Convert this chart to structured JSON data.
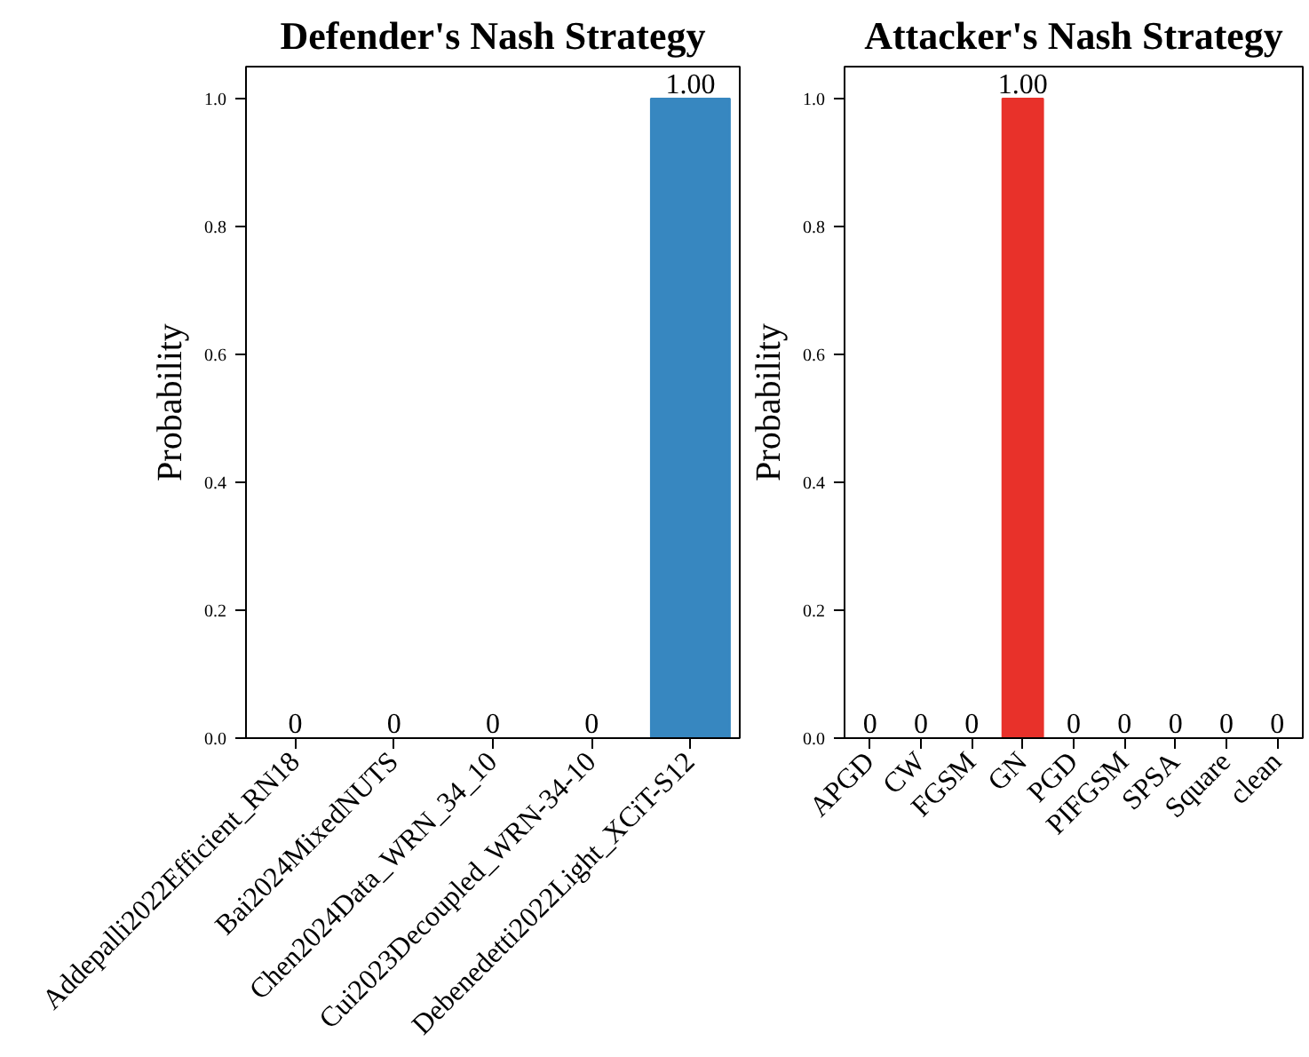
{
  "chart_data": [
    {
      "type": "bar",
      "title": "Defender's Nash Strategy",
      "ylabel": "Probability",
      "categories": [
        "Addepalli2022Efficient_RN18",
        "Bai2024MixedNUTS",
        "Chen2024Data_WRN_34_10",
        "Cui2023Decoupled_WRN-34-10",
        "Debenedetti2022Light_XCiT-S12"
      ],
      "values": [
        0,
        0,
        0,
        0,
        1.0
      ],
      "value_labels": [
        "0",
        "0",
        "0",
        "0",
        "1.00"
      ],
      "color": "#3787c0",
      "ylim": [
        0,
        1.05
      ],
      "yticks": [
        {
          "value": 0,
          "label": "0.0"
        },
        {
          "value": 0.2,
          "label": "0.2"
        },
        {
          "value": 0.4,
          "label": "0.4"
        },
        {
          "value": 0.6,
          "label": "0.6"
        },
        {
          "value": 0.8,
          "label": "0.8"
        },
        {
          "value": 1.0,
          "label": "1.0"
        }
      ]
    },
    {
      "type": "bar",
      "title": "Attacker's Nash Strategy",
      "ylabel": "Probability",
      "categories": [
        "APGD",
        "CW",
        "FGSM",
        "GN",
        "PGD",
        "PIFGSM",
        "SPSA",
        "Square",
        "clean"
      ],
      "values": [
        0,
        0,
        0,
        1.0,
        0,
        0,
        0,
        0,
        0
      ],
      "value_labels": [
        "0",
        "0",
        "0",
        "1.00",
        "0",
        "0",
        "0",
        "0",
        "0"
      ],
      "color": "#e8312a",
      "ylim": [
        0,
        1.05
      ],
      "yticks": [
        {
          "value": 0,
          "label": "0.0"
        },
        {
          "value": 0.2,
          "label": "0.2"
        },
        {
          "value": 0.4,
          "label": "0.4"
        },
        {
          "value": 0.6,
          "label": "0.6"
        },
        {
          "value": 0.8,
          "label": "0.8"
        },
        {
          "value": 1.0,
          "label": "1.0"
        }
      ]
    }
  ]
}
